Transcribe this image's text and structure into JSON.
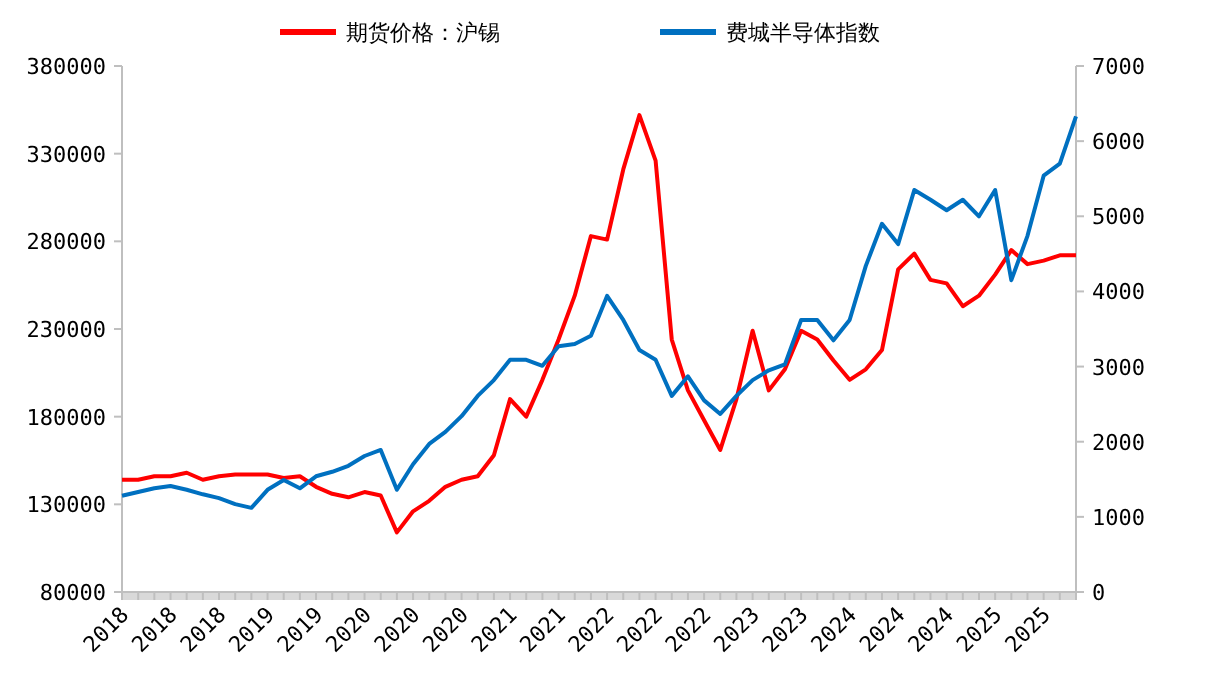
{
  "chart_data": {
    "type": "line",
    "legend": "top",
    "categories": [
      "2018",
      null,
      null,
      "2018",
      null,
      null,
      "2018",
      null,
      null,
      "2019",
      null,
      null,
      "2019",
      null,
      null,
      "2020",
      null,
      null,
      "2020",
      null,
      null,
      "2020",
      null,
      null,
      "2021",
      null,
      null,
      "2021",
      null,
      null,
      "2022",
      null,
      null,
      "2022",
      null,
      null,
      "2022",
      null,
      null,
      "2023",
      null,
      null,
      "2023",
      null,
      null,
      "2024",
      null,
      null,
      "2024",
      null,
      null,
      "2024",
      null,
      null,
      "2025",
      null,
      null,
      "2025",
      null,
      null
    ],
    "ylim": [
      80000,
      380000
    ],
    "yticks": [
      80000,
      130000,
      180000,
      230000,
      280000,
      330000,
      380000
    ],
    "y2lim": [
      0,
      7000
    ],
    "y2ticks": [
      0,
      1000,
      2000,
      3000,
      4000,
      5000,
      6000,
      7000
    ],
    "series": [
      {
        "name": "期货价格：沪锡",
        "color": "#ff0000",
        "values": [
          144000,
          144000,
          146000,
          146000,
          148000,
          144000,
          146000,
          147000,
          147000,
          147000,
          145000,
          146000,
          140000,
          136000,
          134000,
          137000,
          135000,
          114000,
          126000,
          132000,
          140000,
          144000,
          146000,
          158000,
          190000,
          180000,
          201000,
          224000,
          249000,
          283000,
          281000,
          321000,
          352000,
          326000,
          224000,
          195000,
          178000,
          161000,
          190000,
          229000,
          195000,
          207000,
          229000,
          224000,
          212000,
          201000,
          207000,
          218000,
          264000,
          273000,
          258000,
          256000,
          243000,
          249000,
          261000,
          275000,
          267000,
          269000,
          272000,
          272000
        ]
      },
      {
        "name": "费城半导体指数",
        "color": "#0070c0",
        "axis": "y2",
        "values": [
          1280,
          1330,
          1380,
          1410,
          1360,
          1300,
          1250,
          1170,
          1120,
          1360,
          1490,
          1380,
          1540,
          1600,
          1680,
          1810,
          1890,
          1360,
          1700,
          1970,
          2130,
          2340,
          2610,
          2820,
          3090,
          3090,
          3010,
          3270,
          3300,
          3410,
          3940,
          3620,
          3220,
          3090,
          2610,
          2870,
          2550,
          2370,
          2610,
          2820,
          2950,
          3030,
          3620,
          3620,
          3350,
          3620,
          4340,
          4900,
          4630,
          5350,
          5220,
          5080,
          5220,
          5000,
          5350,
          4150,
          4740,
          5540,
          5700,
          6330
        ]
      }
    ]
  }
}
